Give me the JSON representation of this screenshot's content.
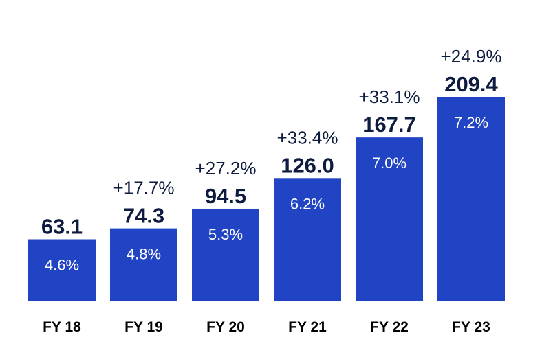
{
  "chart_data": {
    "type": "bar",
    "categories": [
      "FY 18",
      "FY 19",
      "FY 20",
      "FY 21",
      "FY 22",
      "FY 23"
    ],
    "values": [
      63.1,
      74.3,
      94.5,
      126.0,
      167.7,
      209.4
    ],
    "value_labels": [
      "63.1",
      "74.3",
      "94.5",
      "126.0",
      "167.7",
      "209.4"
    ],
    "bar_labels": [
      "4.6%",
      "4.8%",
      "5.3%",
      "6.2%",
      "7.0%",
      "7.2%"
    ],
    "growth_labels": [
      "",
      "+17.7%",
      "+27.2%",
      "+33.4%",
      "+33.1%",
      "+24.9%"
    ],
    "bar_color": "#2044c4",
    "text_color": "#0d1b3e",
    "ylim": [
      0,
      209.4
    ]
  }
}
